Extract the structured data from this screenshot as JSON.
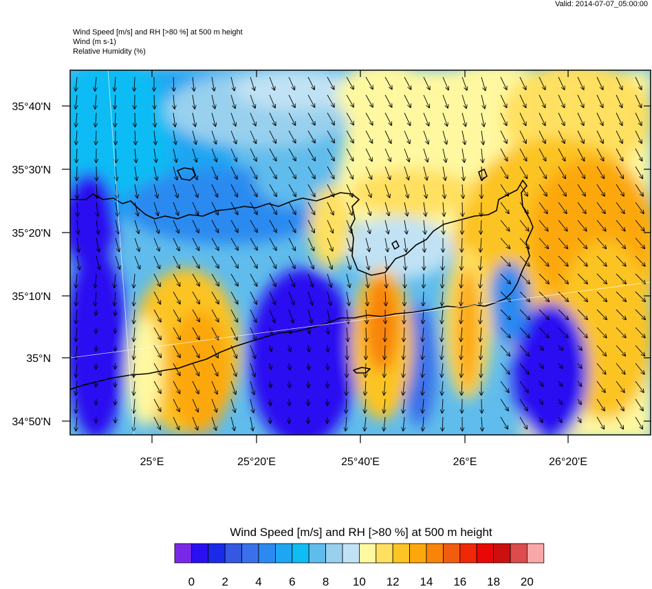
{
  "valid_label": "Valid: 2014-07-07_05:00:00",
  "header": {
    "line1": "Wind Speed [m/s] and RH [>80 %] at 500 m height",
    "line2": "Wind   (m s-1)",
    "line3": "Relative Humidity   (%)"
  },
  "axes": {
    "lat_labels": [
      "35°40'N",
      "35°30'N",
      "35°20'N",
      "35°10'N",
      "35°N",
      "34°50'N"
    ],
    "lon_labels": [
      "25°E",
      "25°20'E",
      "25°40'E",
      "26°E",
      "26°20'E"
    ]
  },
  "colorbar": {
    "title": "Wind Speed [m/s] and RH [>80 %] at 500 m height",
    "tick_labels": [
      "0",
      "2",
      "4",
      "6",
      "8",
      "10",
      "12",
      "14",
      "16",
      "18",
      "20"
    ],
    "colors": [
      "#7a28e8",
      "#2a10f0",
      "#1a2ae8",
      "#3458e0",
      "#3a70ea",
      "#2a8af0",
      "#1ea6f2",
      "#10bcf4",
      "#60bcec",
      "#98d0ee",
      "#c0e2f4",
      "#fff8a0",
      "#ffe060",
      "#fcc424",
      "#fca80c",
      "#f88408",
      "#f05c10",
      "#f02808",
      "#e80808",
      "#cc1010",
      "#dc4c4c",
      "#f8a8a8"
    ]
  }
}
